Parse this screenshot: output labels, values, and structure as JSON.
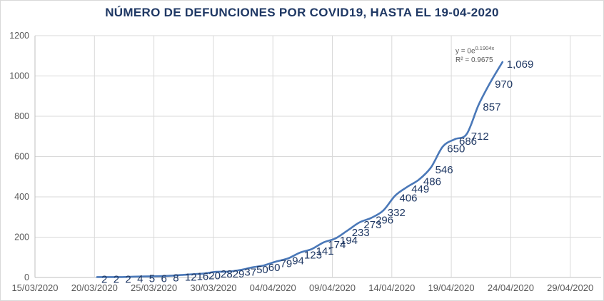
{
  "chart": {
    "title": "NÚMERO DE DEFUNCIONES POR COVID19, HASTA EL 19-04-2020",
    "trendline": {
      "equation_prefix": "y = 0e",
      "equation_exponent": "0.1904x",
      "r_squared": "R² = 0.9675"
    },
    "colors": {
      "line": "#4a78b8",
      "data_labels": "#1f3864",
      "title": "#1f3864",
      "axis_text": "#595959",
      "gridline": "#d9d9d9",
      "axis_line": "#bfbfbf"
    }
  },
  "chart_data": {
    "type": "line",
    "title": "NÚMERO DE DEFUNCIONES POR COVID19, HASTA EL 19-04-2020",
    "xlabel": "",
    "ylabel": "",
    "x_tick_labels": [
      "15/03/2020",
      "20/03/2020",
      "25/03/2020",
      "30/03/2020",
      "04/04/2020",
      "09/04/2020",
      "14/04/2020",
      "19/04/2020",
      "24/04/2020",
      "29/04/2020"
    ],
    "y_ticks": [
      0,
      200,
      400,
      600,
      800,
      1000,
      1200
    ],
    "ylim": [
      0,
      1200
    ],
    "values": [
      2,
      2,
      2,
      4,
      5,
      6,
      8,
      12,
      16,
      20,
      28,
      29,
      37,
      50,
      60,
      79,
      94,
      123,
      141,
      174,
      194,
      233,
      273,
      296,
      332,
      406,
      449,
      486,
      546,
      650,
      686,
      712,
      857,
      970,
      1069
    ],
    "point_labels": [
      "2",
      "2",
      "2",
      "4",
      "5",
      "6",
      "8",
      "12",
      "16",
      "20",
      "28",
      "29",
      "37",
      "50",
      "60",
      "79",
      "94",
      "123",
      "141",
      "174",
      "194",
      "233",
      "273",
      "296",
      "332",
      "406",
      "449",
      "486",
      "546",
      "650",
      "686",
      "712",
      "857",
      "970",
      "1,069"
    ],
    "annotations": [
      "y = 0e^(0.1904x)",
      "R² = 0.9675"
    ],
    "legend": "none",
    "grid": true,
    "smooth_line": true,
    "data_label_position": "right"
  }
}
